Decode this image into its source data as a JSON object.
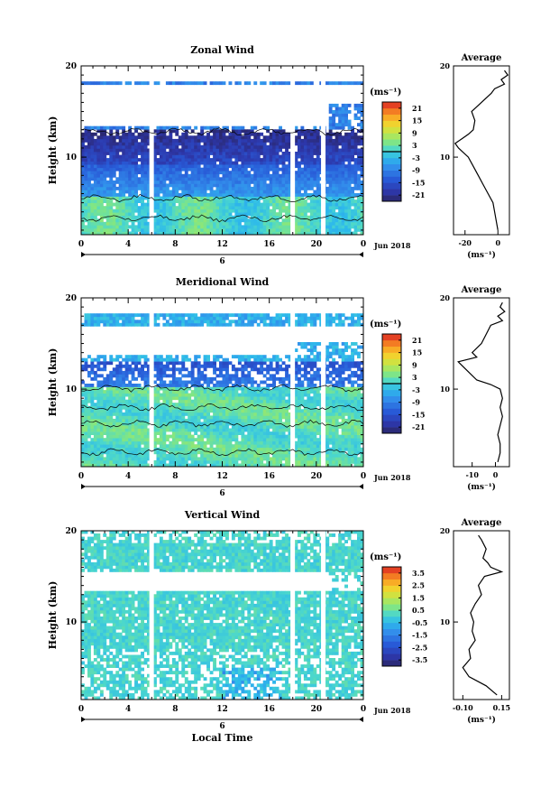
{
  "figure": {
    "month_label": "Jun 2018",
    "day_label": "6",
    "xlabel": "Local Time",
    "ylabel": "Height (km)",
    "unit_label": "(ms⁻¹)",
    "average_title": "Average"
  },
  "chart_data": [
    {
      "type": "heatmap",
      "title": "Zonal Wind",
      "xlabel": "",
      "ylabel": "Height (km)",
      "x_ticks": [
        "0",
        "4",
        "8",
        "12",
        "16",
        "20",
        "0"
      ],
      "xlim": [
        0,
        24
      ],
      "y_ticks": [
        "10",
        "20"
      ],
      "ylim": [
        1.5,
        20
      ],
      "colorbar": {
        "label": "(ms⁻¹)",
        "ticks": [
          "21",
          "15",
          "9",
          "3",
          "-3",
          "-9",
          "-15",
          "-21"
        ],
        "range": [
          -24,
          24
        ],
        "contour_level": 0
      },
      "data_gaps_hours": [
        5.8,
        17.8,
        20.4
      ],
      "profile": {
        "title": "Average",
        "x_ticks": [
          "-20",
          "0"
        ],
        "xlim": [
          -27,
          7
        ],
        "xlabel": "(ms⁻¹)",
        "height": [
          2,
          3,
          4,
          5,
          6,
          7,
          8,
          9,
          10,
          11,
          11.5,
          12,
          12.5,
          13,
          14,
          15,
          16,
          17,
          17.5,
          18,
          18.5,
          19,
          19.5
        ],
        "value": [
          0,
          -1,
          -2,
          -3,
          -6,
          -9,
          -12,
          -15,
          -18,
          -24,
          -26,
          -22,
          -18,
          -15,
          -14,
          -16,
          -10,
          -4,
          -2,
          4,
          2,
          6,
          4
        ]
      }
    },
    {
      "type": "heatmap",
      "title": "Meridional Wind",
      "xlabel": "",
      "ylabel": "Height (km)",
      "x_ticks": [
        "0",
        "4",
        "8",
        "12",
        "16",
        "20",
        "0"
      ],
      "xlim": [
        0,
        24
      ],
      "y_ticks": [
        "10",
        "20"
      ],
      "ylim": [
        1.5,
        20
      ],
      "colorbar": {
        "label": "(ms⁻¹)",
        "ticks": [
          "21",
          "15",
          "9",
          "3",
          "-3",
          "-9",
          "-15",
          "-21"
        ],
        "range": [
          -24,
          24
        ],
        "contour_level": 0
      },
      "data_gaps_hours": [
        5.8,
        17.8,
        20.4
      ],
      "profile": {
        "title": "Average",
        "x_ticks": [
          "-10",
          "0"
        ],
        "xlim": [
          -18,
          6
        ],
        "xlabel": "(ms⁻¹)",
        "height": [
          2,
          3,
          4,
          5,
          6,
          7,
          8,
          9,
          10,
          10.5,
          11,
          12,
          13,
          13.5,
          14,
          15,
          16,
          17,
          17.5,
          18,
          18.5,
          19,
          19.5
        ],
        "value": [
          1,
          2,
          2,
          1,
          2,
          3,
          2,
          3,
          2,
          -2,
          -8,
          -12,
          -16,
          -8,
          -10,
          -6,
          -4,
          -2,
          3,
          1,
          4,
          2,
          3
        ]
      }
    },
    {
      "type": "heatmap",
      "title": "Vertical Wind",
      "xlabel": "Local Time",
      "ylabel": "Height (km)",
      "x_ticks": [
        "0",
        "4",
        "8",
        "12",
        "16",
        "20",
        "0"
      ],
      "xlim": [
        0,
        24
      ],
      "y_ticks": [
        "10",
        "20"
      ],
      "ylim": [
        1.5,
        20
      ],
      "colorbar": {
        "label": "(ms⁻¹)",
        "ticks": [
          "3.5",
          "2.5",
          "1.5",
          "0.5",
          "-0.5",
          "-1.5",
          "-2.5",
          "-3.5"
        ],
        "range": [
          -4,
          4
        ],
        "contour_level": null
      },
      "data_gaps_hours": [
        5.8,
        17.8,
        20.4
      ],
      "profile": {
        "title": "Average",
        "x_ticks": [
          "-0.10",
          "0.15"
        ],
        "xlim": [
          -0.16,
          0.2
        ],
        "xlabel": "(ms⁻¹)",
        "height": [
          2,
          3,
          4,
          5,
          6,
          7,
          8,
          9,
          10,
          11,
          12,
          13,
          14,
          15,
          15.5,
          16,
          16.5,
          17,
          18,
          19,
          19.5
        ],
        "value": [
          0.12,
          0.05,
          -0.06,
          -0.1,
          -0.05,
          -0.06,
          -0.02,
          -0.04,
          -0.03,
          -0.05,
          -0.02,
          0.02,
          0.0,
          0.04,
          0.15,
          0.08,
          0.06,
          0.03,
          0.05,
          0.02,
          0.0
        ]
      }
    }
  ]
}
